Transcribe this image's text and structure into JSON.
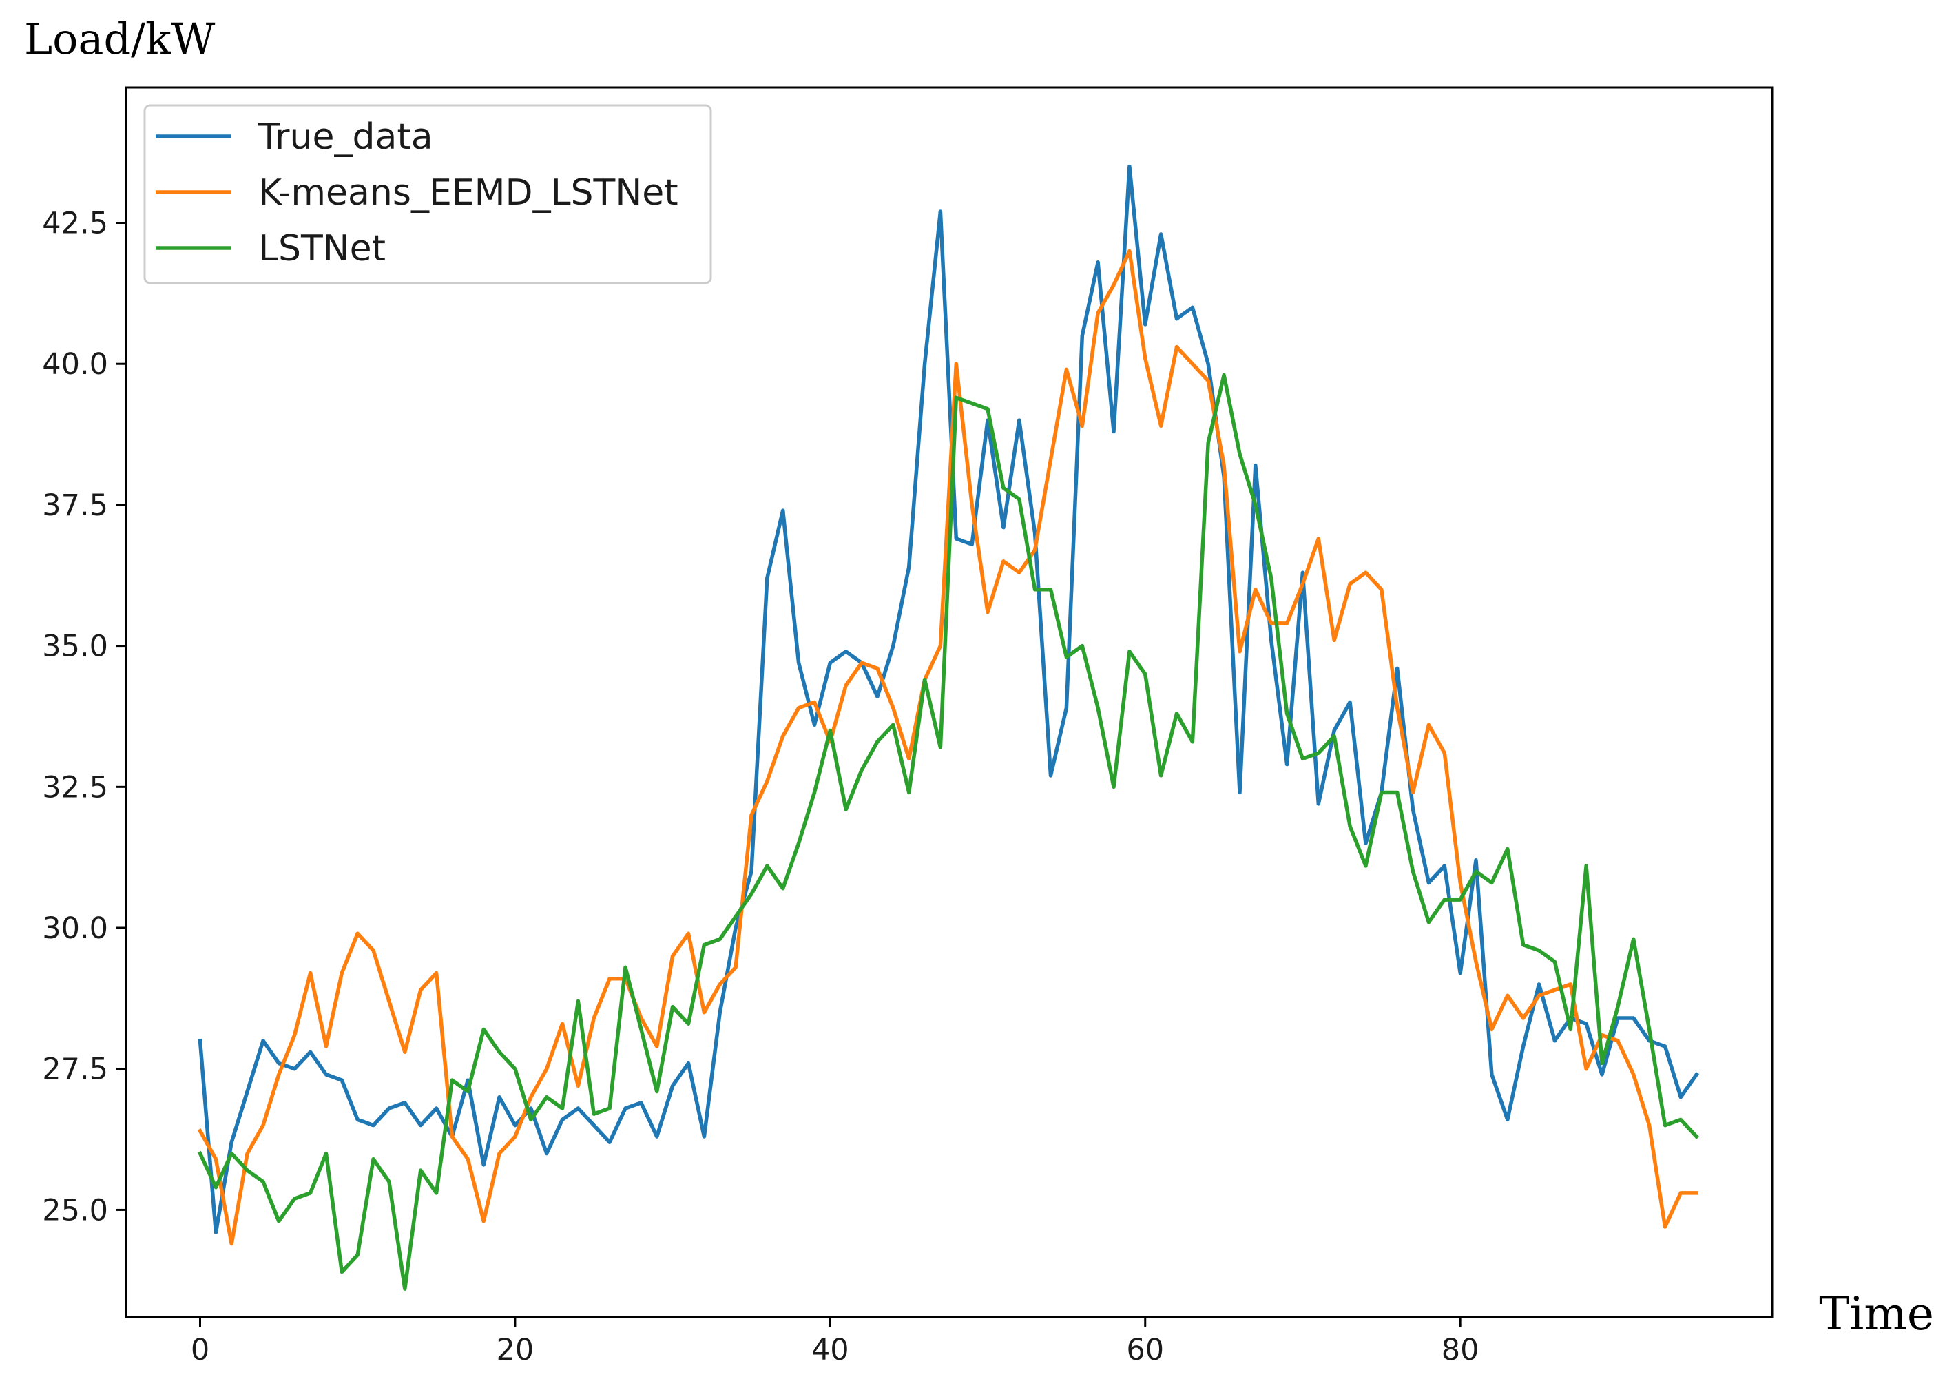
{
  "chart_data": {
    "type": "line",
    "title": "",
    "ylabel": "Load/kW",
    "xlabel": "Time",
    "xlim": [
      -4.7,
      99.8
    ],
    "ylim": [
      23.1,
      44.9
    ],
    "xticks": [
      0,
      20,
      40,
      60,
      80
    ],
    "yticks": [
      25.0,
      27.5,
      30.0,
      32.5,
      35.0,
      37.5,
      40.0,
      42.5
    ],
    "xtick_labels": [
      "0",
      "20",
      "40",
      "60",
      "80"
    ],
    "ytick_labels": [
      "25.0",
      "27.5",
      "30.0",
      "32.5",
      "35.0",
      "37.5",
      "40.0",
      "42.5"
    ],
    "grid": false,
    "legend": "top-left",
    "x": [
      0,
      1,
      2,
      3,
      4,
      5,
      6,
      7,
      8,
      9,
      10,
      11,
      12,
      13,
      14,
      15,
      16,
      17,
      18,
      19,
      20,
      21,
      22,
      23,
      24,
      25,
      26,
      27,
      28,
      29,
      30,
      31,
      32,
      33,
      34,
      35,
      36,
      37,
      38,
      39,
      40,
      41,
      42,
      43,
      44,
      45,
      46,
      47,
      48,
      49,
      50,
      51,
      52,
      53,
      54,
      55,
      56,
      57,
      58,
      59,
      60,
      61,
      62,
      63,
      64,
      65,
      66,
      67,
      68,
      69,
      70,
      71,
      72,
      73,
      74,
      75,
      76,
      77,
      78,
      79,
      80,
      81,
      82,
      83,
      84,
      85,
      86,
      87,
      88,
      89,
      90,
      91,
      92,
      93,
      94,
      95
    ],
    "series": [
      {
        "name": "True_data",
        "color": "#1f77b4",
        "values": [
          28.0,
          24.6,
          26.2,
          27.1,
          28.0,
          27.6,
          27.5,
          27.8,
          27.4,
          27.3,
          26.6,
          26.5,
          26.8,
          26.9,
          26.5,
          26.8,
          26.3,
          27.3,
          25.8,
          27.0,
          26.5,
          26.8,
          26.0,
          26.6,
          26.8,
          26.5,
          26.2,
          26.8,
          26.9,
          26.3,
          27.2,
          27.6,
          26.3,
          28.5,
          30.0,
          31.0,
          36.2,
          37.4,
          34.7,
          33.6,
          34.7,
          34.9,
          34.7,
          34.1,
          35.0,
          36.4,
          40.0,
          42.7,
          36.9,
          36.8,
          39.0,
          37.1,
          39.0,
          37.0,
          32.7,
          33.9,
          40.5,
          41.8,
          38.8,
          43.5,
          40.7,
          42.3,
          40.8,
          41.0,
          40.0,
          38.0,
          32.4,
          38.2,
          35.1,
          32.9,
          36.3,
          32.2,
          33.5,
          34.0,
          31.5,
          32.4,
          34.6,
          32.1,
          30.8,
          31.1,
          29.2,
          31.2,
          27.4,
          26.6,
          27.9,
          29.0,
          28.0,
          28.4,
          28.3,
          27.4,
          28.4,
          28.4,
          28.0,
          27.9,
          27.0,
          27.4
        ]
      },
      {
        "name": "K-means_EEMD_LSTNet",
        "color": "#ff7f0e",
        "values": [
          26.4,
          25.9,
          24.4,
          26.0,
          26.5,
          27.4,
          28.1,
          29.2,
          27.9,
          29.2,
          29.9,
          29.6,
          28.7,
          27.8,
          28.9,
          29.2,
          26.3,
          25.9,
          24.8,
          26.0,
          26.3,
          27.0,
          27.5,
          28.3,
          27.2,
          28.4,
          29.1,
          29.1,
          28.4,
          27.9,
          29.5,
          29.9,
          28.5,
          29.0,
          29.3,
          32.0,
          32.6,
          33.4,
          33.9,
          34.0,
          33.3,
          34.3,
          34.7,
          34.6,
          33.9,
          33.0,
          34.4,
          35.0,
          40.0,
          37.5,
          35.6,
          36.5,
          36.3,
          36.7,
          38.3,
          39.9,
          38.9,
          40.9,
          41.4,
          42.0,
          40.1,
          38.9,
          40.3,
          40.0,
          39.7,
          38.2,
          34.9,
          36.0,
          35.4,
          35.4,
          36.1,
          36.9,
          35.1,
          36.1,
          36.3,
          36.0,
          33.9,
          32.4,
          33.6,
          33.1,
          30.8,
          29.4,
          28.2,
          28.8,
          28.4,
          28.8,
          28.9,
          29.0,
          27.5,
          28.1,
          28.0,
          27.4,
          26.5,
          24.7,
          25.3,
          25.3
        ]
      },
      {
        "name": "LSTNet",
        "color": "#2ca02c",
        "values": [
          26.0,
          25.4,
          26.0,
          25.7,
          25.5,
          24.8,
          25.2,
          25.3,
          26.0,
          23.9,
          24.2,
          25.9,
          25.5,
          23.6,
          25.7,
          25.3,
          27.3,
          27.1,
          28.2,
          27.8,
          27.5,
          26.6,
          27.0,
          26.8,
          28.7,
          26.7,
          26.8,
          29.3,
          28.2,
          27.1,
          28.6,
          28.3,
          29.7,
          29.8,
          30.2,
          30.6,
          31.1,
          30.7,
          31.5,
          32.4,
          33.5,
          32.1,
          32.8,
          33.3,
          33.6,
          32.4,
          34.4,
          33.2,
          39.4,
          39.3,
          39.2,
          37.8,
          37.6,
          36.0,
          36.0,
          34.8,
          35.0,
          33.9,
          32.5,
          34.9,
          34.5,
          32.7,
          33.8,
          33.3,
          38.6,
          39.8,
          38.4,
          37.5,
          36.2,
          33.8,
          33.0,
          33.1,
          33.4,
          31.8,
          31.1,
          32.4,
          32.4,
          31.0,
          30.1,
          30.5,
          30.5,
          31.0,
          30.8,
          31.4,
          29.7,
          29.6,
          29.4,
          28.2,
          31.1,
          27.6,
          28.6,
          29.8,
          28.2,
          26.5,
          26.6,
          26.3
        ]
      }
    ]
  }
}
